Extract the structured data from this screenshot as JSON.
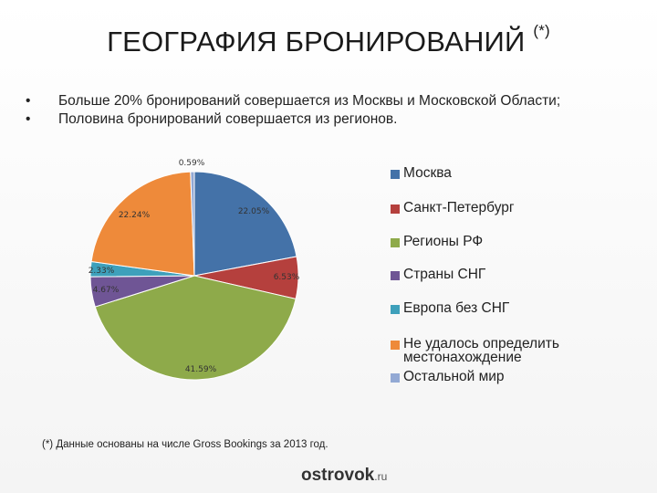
{
  "header": {
    "title": "ГЕОГРАФИЯ БРОНИРОВАНИЙ",
    "title_note": "(*)"
  },
  "bullets": [
    "Больше 20% бронирований совершается из Москвы и Московской Области;",
    "Половина бронирований совершается из регионов."
  ],
  "chart_data": {
    "type": "pie",
    "start": "top, clockwise",
    "slices": [
      {
        "label": "Москва",
        "value": 22.05,
        "value_label": "22.05%",
        "color": "#4472a8"
      },
      {
        "label": "Санкт-Петербург",
        "value": 6.53,
        "value_label": "6.53%",
        "color": "#b5403d"
      },
      {
        "label": "Регионы РФ",
        "value": 41.59,
        "value_label": "41.59%",
        "color": "#8eaa4a"
      },
      {
        "label": "Страны СНГ",
        "value": 4.67,
        "value_label": "4.67%",
        "color": "#6f5595"
      },
      {
        "label": "Европа без СНГ",
        "value": 2.33,
        "value_label": "2.33%",
        "color": "#3ea0bb"
      },
      {
        "label": "Не удалось определить местонахождение",
        "value": 22.24,
        "value_label": "22.24%",
        "color": "#ee8a3a"
      },
      {
        "label": "Остальной мир",
        "value": 0.59,
        "value_label": "0.59%",
        "color": "#93a9d4"
      }
    ],
    "legend_position": "right"
  },
  "footnote": "(*) Данные основаны на числе Gross Bookings за 2013 год.",
  "logo": {
    "name": "ostrovok",
    "suffix": ".ru"
  }
}
